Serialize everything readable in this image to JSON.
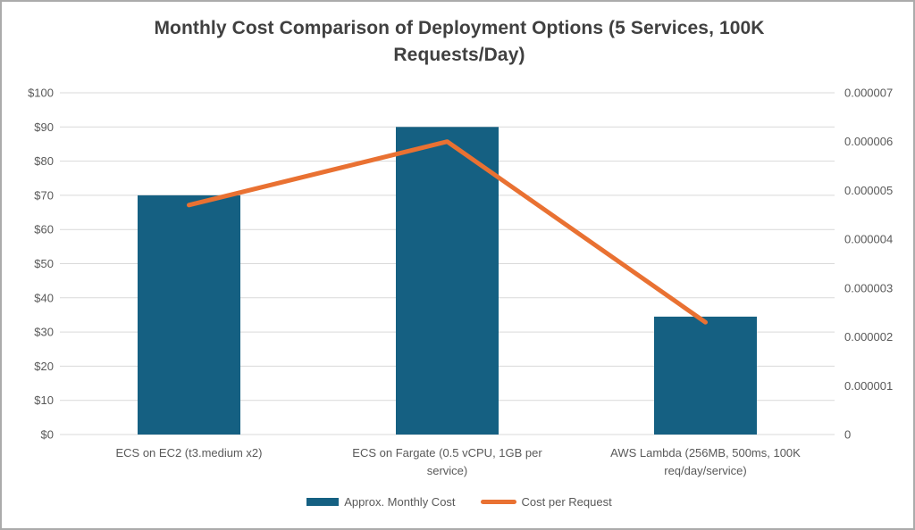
{
  "chart_data": {
    "type": "bar",
    "subtype": "combo-bar-line-dual-axis",
    "title": "Monthly Cost Comparison of Deployment Options (5 Services, 100K Requests/Day)",
    "categories": [
      "ECS on EC2 (t3.medium x2)",
      "ECS on Fargate (0.5 vCPU, 1GB per service)",
      "AWS Lambda (256MB, 500ms, 100K req/day/service)"
    ],
    "series": [
      {
        "name": "Approx. Monthly Cost",
        "type": "bar",
        "axis": "left",
        "color": "#156082",
        "values": [
          70,
          90,
          34.5
        ]
      },
      {
        "name": "Cost per Request",
        "type": "line",
        "axis": "right",
        "color": "#E97132",
        "values": [
          4.7e-06,
          6e-06,
          2.3e-06
        ]
      }
    ],
    "left_axis": {
      "min": 0,
      "max": 100,
      "tick_labels": [
        "$0",
        "$10",
        "$20",
        "$30",
        "$40",
        "$50",
        "$60",
        "$70",
        "$80",
        "$90",
        "$100"
      ]
    },
    "right_axis": {
      "min": 0,
      "max": 7e-06,
      "tick_labels": [
        "0",
        "0.000001",
        "0.000002",
        "0.000003",
        "0.000004",
        "0.000005",
        "0.000006",
        "0.000007"
      ]
    },
    "grid": true,
    "legend_position": "bottom",
    "gridline_color": "#D9D9D9",
    "axis_text_color": "#595959",
    "title_color": "#404040"
  }
}
